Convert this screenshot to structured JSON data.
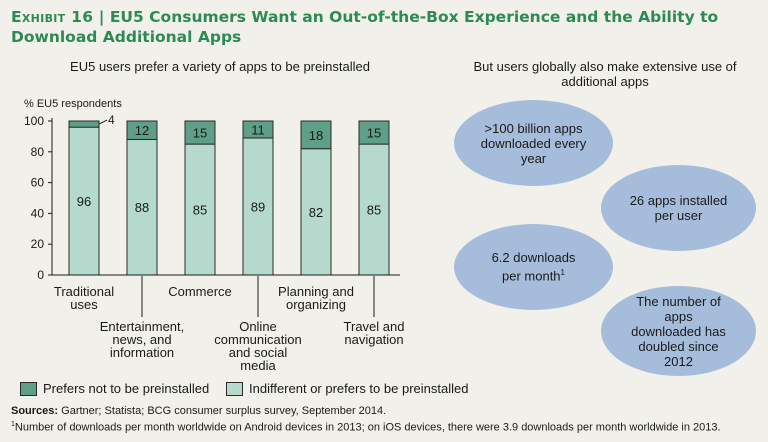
{
  "title": {
    "exhibit": "Exhibit 16",
    "separator": "|",
    "text": "EU5 Consumers Want an Out-of-the-Box Experience and the Ability to Download Additional Apps"
  },
  "left_subtitle": "EU5 users prefer a variety of apps to be preinstalled",
  "right_subtitle": "But users globally also make extensive use of additional apps",
  "chart_data": {
    "type": "bar",
    "stacked": true,
    "ylabel": "% EU5 respondents",
    "ylim": [
      0,
      100
    ],
    "yticks": [
      0,
      20,
      40,
      60,
      80,
      100
    ],
    "categories": [
      "Traditional uses",
      "Entertainment, news, and information",
      "Commerce",
      "Online communication and social media",
      "Planning and organizing",
      "Travel and navigation"
    ],
    "category_label_lines": [
      [
        "Traditional",
        "uses"
      ],
      [
        "Entertainment,",
        "news, and",
        "information"
      ],
      [
        "Commerce"
      ],
      [
        "Online",
        "communication",
        "and social",
        "media"
      ],
      [
        "Planning and",
        "organizing"
      ],
      [
        "Travel and",
        "navigation"
      ]
    ],
    "series": [
      {
        "name": "Indifferent or prefers to be preinstalled",
        "values": [
          96,
          88,
          85,
          89,
          82,
          85
        ],
        "color": "#b6d9cd"
      },
      {
        "name": "Prefers not to be preinstalled",
        "values": [
          4,
          12,
          15,
          11,
          18,
          15
        ],
        "color": "#5f9f88"
      }
    ]
  },
  "legend": [
    {
      "label": "Prefers not to be preinstalled",
      "color": "#5f9f88"
    },
    {
      "label": "Indifferent or prefers to be preinstalled",
      "color": "#b6d9cd"
    }
  ],
  "bubbles": [
    {
      "text": ">100 billion apps downloaded every year"
    },
    {
      "text": "26 apps installed per user"
    },
    {
      "text": "6.2 downloads per month",
      "sup": "1"
    },
    {
      "text": "The number of apps downloaded has doubled since 2012"
    }
  ],
  "bubble_color": "#a6bcdb",
  "sources": {
    "label": "Sources:",
    "text": "Gartner; Statista; BCG consumer surplus survey, September 2014."
  },
  "footnote": {
    "marker": "1",
    "text": "Number of downloads per month worldwide on Android devices in 2013; on iOS devices, there were 3.9 downloads per month worldwide in 2013."
  }
}
